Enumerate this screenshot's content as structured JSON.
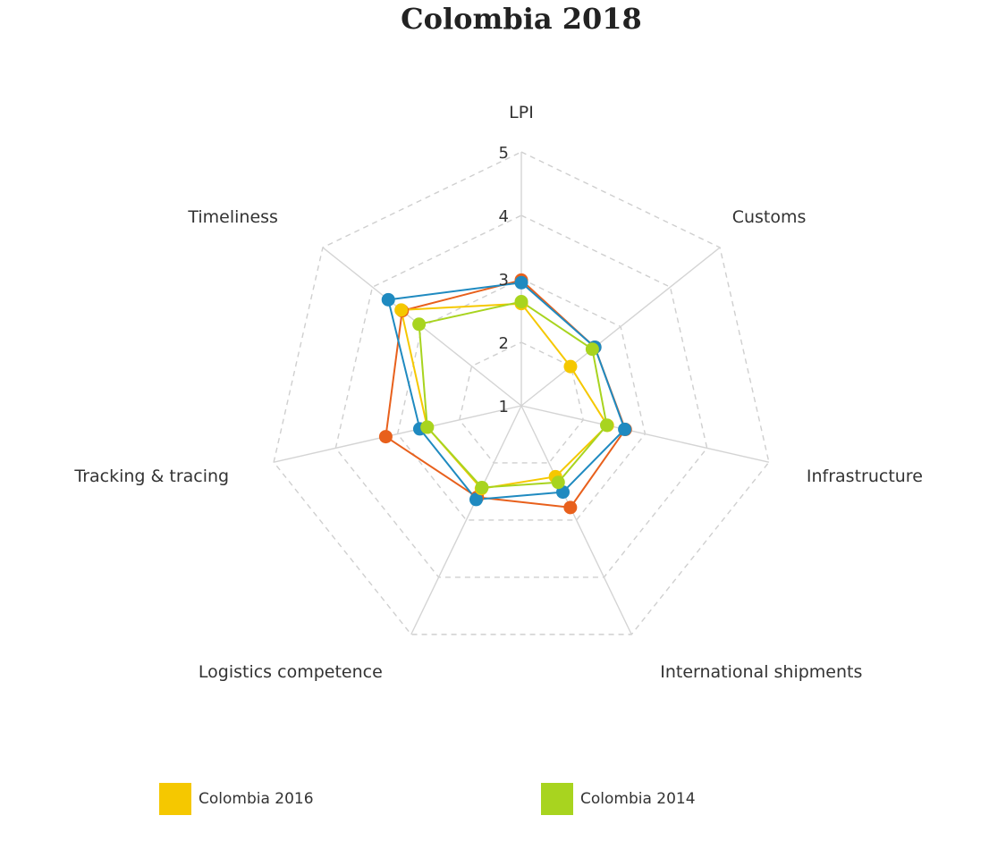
{
  "chart_data": {
    "type": "radar",
    "title": "Colombia 2018",
    "axes": [
      "LPI",
      "Customs",
      "Infrastructure",
      "International shipments",
      "Logistics competence",
      "Tracking & tracing",
      "Timeliness"
    ],
    "rlim": [
      1,
      5
    ],
    "ticks": [
      "1",
      "2",
      "3",
      "4",
      "5"
    ],
    "grid": true,
    "legend_position": "bottom",
    "series": [
      {
        "name": "",
        "color": "#e8601c",
        "values": [
          2.98,
          2.48,
          2.68,
          2.78,
          2.6,
          3.19,
          3.4
        ]
      },
      {
        "name": "",
        "color": "#1f8ac0",
        "values": [
          2.94,
          2.48,
          2.67,
          2.51,
          2.64,
          2.64,
          3.68
        ]
      },
      {
        "name": "Colombia 2016",
        "color": "#f5c800",
        "values": [
          2.61,
          1.99,
          2.39,
          2.24,
          2.45,
          2.52,
          3.42
        ]
      },
      {
        "name": "Colombia 2014",
        "color": "#a8d41f",
        "values": [
          2.64,
          2.43,
          2.38,
          2.34,
          2.43,
          2.52,
          3.06
        ]
      }
    ]
  }
}
